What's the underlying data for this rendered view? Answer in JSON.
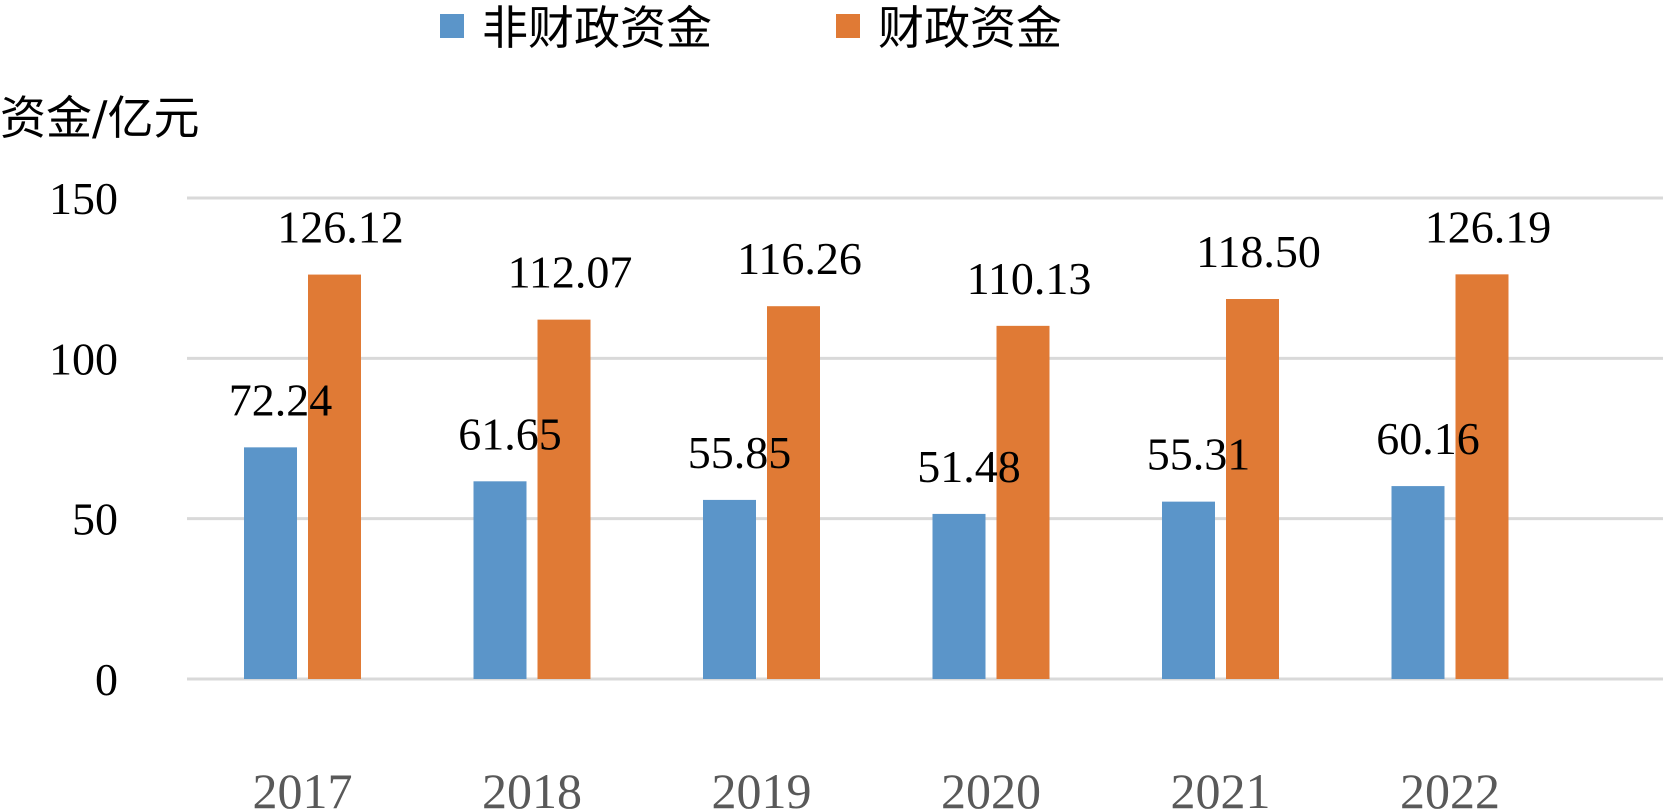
{
  "chart_data": {
    "type": "bar",
    "categories": [
      "2017",
      "2018",
      "2019",
      "2020",
      "2021",
      "2022"
    ],
    "series": [
      {
        "name": "非财政资金",
        "color": "#5B95C9",
        "values": [
          72.24,
          61.65,
          55.85,
          51.48,
          55.31,
          60.16
        ],
        "labels": [
          "72.24",
          "61.65",
          "55.85",
          "51.48",
          "55.31",
          "60.16"
        ]
      },
      {
        "name": "财政资金",
        "color": "#E07A35",
        "values": [
          126.12,
          112.07,
          116.26,
          110.13,
          118.5,
          126.19
        ],
        "labels": [
          "126.12",
          "112.07",
          "116.26",
          "110.13",
          "118.50",
          "126.19"
        ]
      }
    ],
    "title": "",
    "xlabel": "",
    "ylabel": "资金/亿元",
    "ylim": [
      0,
      150
    ],
    "yticks": [
      "0",
      "50",
      "100",
      "150"
    ],
    "grid": true,
    "legend_position": "top"
  }
}
